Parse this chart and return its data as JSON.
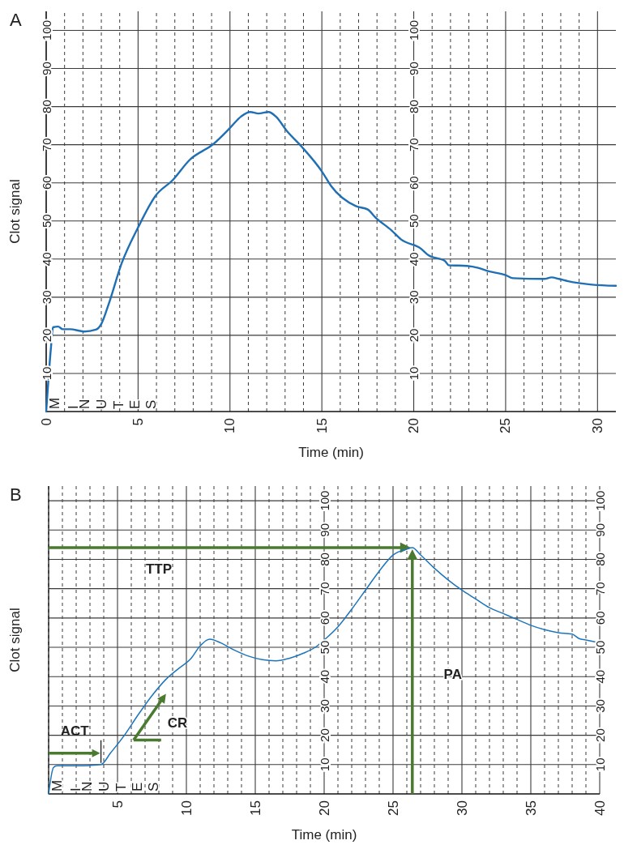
{
  "chart_data": [
    {
      "type": "line",
      "title": "A",
      "xlabel": "Time (min)",
      "ylabel": "Clot signal",
      "grid": true,
      "xlim": [
        0,
        31
      ],
      "ylim": [
        0,
        105
      ],
      "xticks": [
        0,
        {
          "value": 1,
          "label": null
        },
        {
          "value": 2,
          "label": null
        },
        {
          "value": 3,
          "label": null
        },
        {
          "value": 4,
          "label": null
        },
        5,
        {
          "value": 6,
          "label": null
        },
        {
          "value": 7,
          "label": null
        },
        {
          "value": 8,
          "label": null
        },
        {
          "value": 9,
          "label": null
        },
        10,
        {
          "value": 11,
          "label": null
        },
        {
          "value": 12,
          "label": null
        },
        {
          "value": 13,
          "label": null
        },
        {
          "value": 14,
          "label": null
        },
        15,
        {
          "value": 16,
          "label": null
        },
        {
          "value": 17,
          "label": null
        },
        {
          "value": 18,
          "label": null
        },
        {
          "value": 19,
          "label": null
        },
        20,
        {
          "value": 21,
          "label": null
        },
        {
          "value": 22,
          "label": null
        },
        {
          "value": 23,
          "label": null
        },
        {
          "value": 24,
          "label": null
        },
        25,
        {
          "value": 26,
          "label": null
        },
        {
          "value": 27,
          "label": null
        },
        {
          "value": 28,
          "label": null
        },
        {
          "value": 29,
          "label": null
        },
        30
      ],
      "yticks": [
        10,
        20,
        30,
        40,
        50,
        60,
        70,
        80,
        90,
        100
      ],
      "y2lim": [
        0,
        105
      ],
      "y2ticks": [
        10,
        20,
        30,
        40,
        50,
        60,
        70,
        80,
        90,
        100
      ],
      "x": [
        0,
        0.26,
        0.37,
        0.65,
        0.9,
        1.3,
        2.06,
        2.7,
        3,
        3.4,
        4.1,
        5,
        5.95,
        6.9,
        7.8,
        9.1,
        10,
        10.6,
        11.1,
        11.55,
        12.1,
        12.5,
        13.1,
        13.9,
        15,
        15.5,
        16.85,
        17.5,
        17.9,
        18.8,
        19.3,
        20.4,
        20.8,
        21.7,
        21.9,
        22.9,
        23.5,
        24,
        25,
        25.4,
        27.1,
        27.5,
        27.9,
        28.4,
        29.7,
        31
      ],
      "series": [
        {
          "color": "#1f6fb5",
          "values": [
            0,
            16.8,
            22.1,
            22.3,
            21.6,
            21.6,
            21,
            21.5,
            23,
            28.2,
            38.8,
            48.3,
            56.6,
            60.8,
            66,
            70.2,
            74.4,
            77.4,
            78.6,
            78.2,
            78.6,
            77.4,
            73.6,
            69.5,
            63,
            59.2,
            53.9,
            53,
            51,
            47.5,
            45.2,
            42.7,
            41,
            39.5,
            38.4,
            38.2,
            37.7,
            36.9,
            35.8,
            35,
            34.8,
            35.2,
            34.8,
            34.2,
            33.3,
            33
          ]
        }
      ],
      "annotations": [
        "MINUTES"
      ]
    },
    {
      "type": "line",
      "title": "B",
      "xlabel": "Time (min)",
      "ylabel": "Clot signal",
      "grid": true,
      "xlim": [
        0,
        40
      ],
      "ylim": [
        0,
        105
      ],
      "xticks": [
        {
          "value": 0,
          "label": null
        },
        {
          "value": 1,
          "label": null
        },
        {
          "value": 2,
          "label": null
        },
        {
          "value": 3,
          "label": null
        },
        {
          "value": 4,
          "label": null
        },
        5,
        {
          "value": 6,
          "label": null
        },
        {
          "value": 7,
          "label": null
        },
        {
          "value": 8,
          "label": null
        },
        {
          "value": 9,
          "label": null
        },
        10,
        {
          "value": 11,
          "label": null
        },
        {
          "value": 12,
          "label": null
        },
        {
          "value": 13,
          "label": null
        },
        {
          "value": 14,
          "label": null
        },
        15,
        {
          "value": 16,
          "label": null
        },
        {
          "value": 17,
          "label": null
        },
        {
          "value": 18,
          "label": null
        },
        {
          "value": 19,
          "label": null
        },
        20,
        {
          "value": 21,
          "label": null
        },
        {
          "value": 22,
          "label": null
        },
        {
          "value": 23,
          "label": null
        },
        {
          "value": 24,
          "label": null
        },
        25,
        {
          "value": 26,
          "label": null
        },
        {
          "value": 27,
          "label": null
        },
        {
          "value": 28,
          "label": null
        },
        {
          "value": 29,
          "label": null
        },
        30,
        {
          "value": 31,
          "label": null
        },
        {
          "value": 32,
          "label": null
        },
        {
          "value": 33,
          "label": null
        },
        {
          "value": 34,
          "label": null
        },
        35,
        {
          "value": 36,
          "label": null
        },
        {
          "value": 37,
          "label": null
        },
        {
          "value": 38,
          "label": null
        },
        {
          "value": 39,
          "label": null
        },
        40
      ],
      "yticks": [
        10,
        20,
        30,
        40,
        50,
        60,
        70,
        80,
        90,
        100
      ],
      "y2lim": [
        0,
        105
      ],
      "y2ticks": [
        10,
        20,
        30,
        40,
        50,
        60,
        70,
        80,
        90,
        100
      ],
      "x": [
        0,
        0.35,
        0.6,
        2,
        3,
        3.8,
        4.5,
        5.5,
        6.5,
        7.5,
        8.5,
        9.5,
        10.3,
        11,
        11.7,
        12.5,
        13.5,
        14.5,
        15.5,
        16.5,
        17.5,
        18.5,
        19.5,
        20,
        21,
        22,
        23,
        24,
        25,
        26,
        26.4,
        27,
        28,
        29,
        30,
        31,
        32,
        33,
        34,
        35,
        36,
        37,
        38,
        38.5,
        39,
        40
      ],
      "series": [
        {
          "color": "#1c75bc",
          "values": [
            0,
            9,
            9.6,
            9.6,
            9.7,
            10,
            14,
            20,
            27,
            33.5,
            39,
            43,
            46,
            50.5,
            52.8,
            51.5,
            49,
            47,
            45.8,
            45.4,
            46.3,
            48,
            50.5,
            52.5,
            57,
            63,
            69.5,
            76,
            81.5,
            83.5,
            84,
            81.5,
            77,
            73,
            69.5,
            66.5,
            63.5,
            61.5,
            59.5,
            57.5,
            56,
            55,
            54.5,
            53,
            52.5,
            51.5
          ]
        }
      ],
      "ref_lines": [
        {
          "axis": "y",
          "value": 84,
          "label": "TTP",
          "color": "#4a7a30"
        },
        {
          "axis": "x",
          "value": 26.4,
          "label": "PA",
          "color": "#4a7a30"
        }
      ],
      "annotations": [
        "MINUTES",
        {
          "text": "ACT",
          "x": 3.8,
          "y": 10
        },
        "CR"
      ]
    }
  ]
}
